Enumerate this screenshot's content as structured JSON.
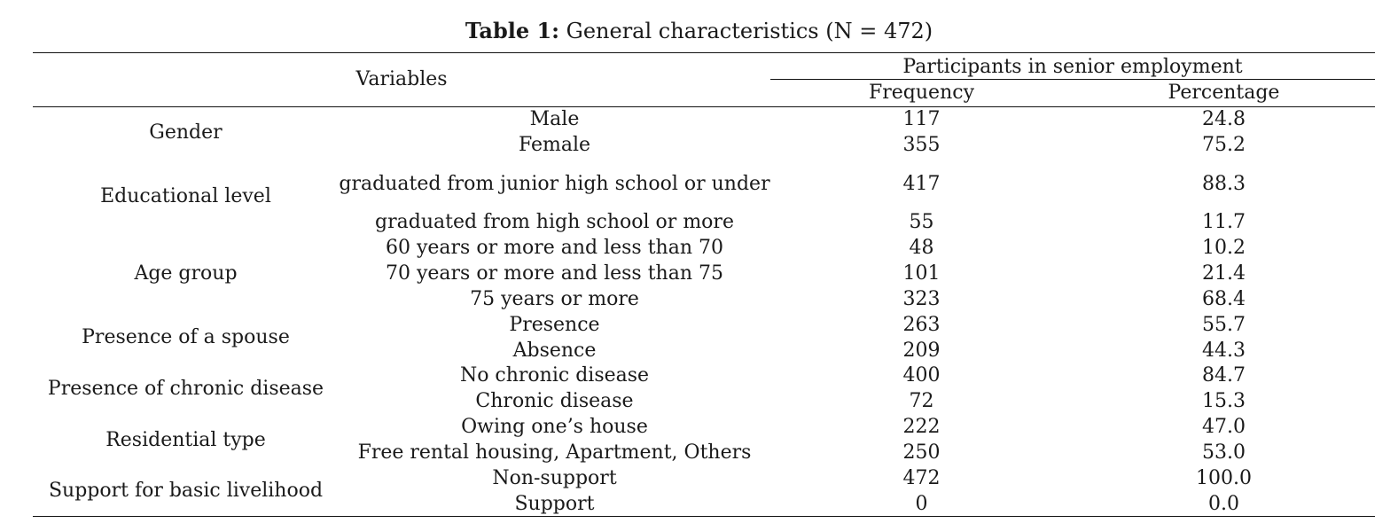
{
  "caption": {
    "label": "Table 1:",
    "text": "General characteristics (N = 472)"
  },
  "header": {
    "variables": "Variables",
    "group": "Participants in senior employment",
    "frequency": "Frequency",
    "percentage": "Percentage"
  },
  "groups": [
    {
      "label": "Gender",
      "rows": [
        {
          "category": "Male",
          "frequency": "117",
          "percentage": "24.8"
        },
        {
          "category": "Female",
          "frequency": "355",
          "percentage": "75.2"
        }
      ]
    },
    {
      "label": "Educational level",
      "rows": [
        {
          "category": "graduated from junior high school or under",
          "frequency": "417",
          "percentage": "88.3"
        },
        {
          "category": "graduated from high school or more",
          "frequency": "55",
          "percentage": "11.7"
        }
      ]
    },
    {
      "label": "Age group",
      "rows": [
        {
          "category": "60 years or more and less than 70",
          "frequency": "48",
          "percentage": "10.2"
        },
        {
          "category": "70 years or more and less than 75",
          "frequency": "101",
          "percentage": "21.4"
        },
        {
          "category": "75 years or more",
          "frequency": "323",
          "percentage": "68.4"
        }
      ]
    },
    {
      "label": "Presence of a spouse",
      "rows": [
        {
          "category": "Presence",
          "frequency": "263",
          "percentage": "55.7"
        },
        {
          "category": "Absence",
          "frequency": "209",
          "percentage": "44.3"
        }
      ]
    },
    {
      "label": "Presence of chronic disease",
      "rows": [
        {
          "category": "No chronic disease",
          "frequency": "400",
          "percentage": "84.7"
        },
        {
          "category": "Chronic disease",
          "frequency": "72",
          "percentage": "15.3"
        }
      ]
    },
    {
      "label": "Residential type",
      "rows": [
        {
          "category": "Owing one’s house",
          "frequency": "222",
          "percentage": "47.0"
        },
        {
          "category": "Free rental housing, Apartment, Others",
          "frequency": "250",
          "percentage": "53.0"
        }
      ]
    },
    {
      "label": "Support for basic livelihood",
      "rows": [
        {
          "category": "Non-support",
          "frequency": "472",
          "percentage": "100.0"
        },
        {
          "category": "Support",
          "frequency": "0",
          "percentage": "0.0"
        }
      ]
    }
  ]
}
